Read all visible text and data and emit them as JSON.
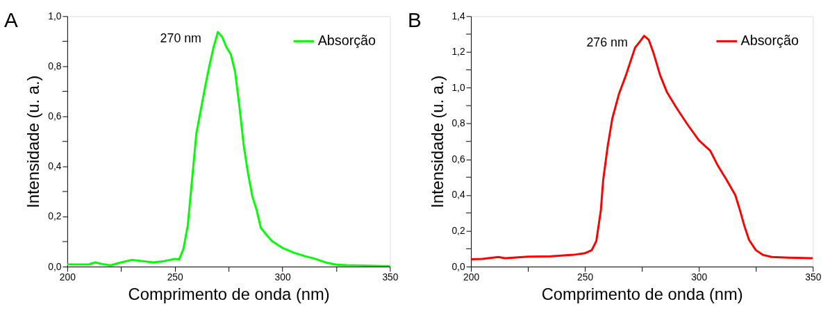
{
  "chart_data": [
    {
      "type": "line",
      "xlabel": "Comprimento de onda (nm)",
      "ylabel": "Intensidade (u. a.)",
      "legend": "top right",
      "grid": false,
      "annotations": [
        "A",
        {
          "text": "270 nm",
          "x": 270,
          "y": 0.937
        }
      ],
      "xlim": [
        200,
        350
      ],
      "xticks": [
        200,
        {
          "value": 225,
          "label": null
        },
        250,
        {
          "value": 275,
          "label": null
        },
        300,
        {
          "value": 325,
          "label": null
        },
        350
      ],
      "ylim": [
        0,
        1.0
      ],
      "yticks": [
        {
          "value": 0,
          "label": "0,0"
        },
        {
          "value": 0.1,
          "label": null
        },
        {
          "value": 0.2,
          "label": "0,2"
        },
        {
          "value": 0.3,
          "label": null
        },
        {
          "value": 0.4,
          "label": "0,4"
        },
        {
          "value": 0.5,
          "label": null
        },
        {
          "value": 0.6,
          "label": "0,6"
        },
        {
          "value": 0.7,
          "label": null
        },
        {
          "value": 0.8,
          "label": "0,8"
        },
        {
          "value": 0.9,
          "label": null
        },
        {
          "value": 1.0,
          "label": "1,0"
        }
      ],
      "series": [
        {
          "name": "Absorção",
          "color": "#00ff00",
          "x": [
            200,
            210,
            213,
            216,
            220,
            225,
            230,
            240,
            245,
            250,
            252,
            254,
            256,
            258,
            260,
            262,
            264,
            266,
            268,
            270,
            272,
            274,
            276,
            278,
            280,
            282,
            284,
            286,
            288,
            290,
            295,
            300,
            305,
            310,
            315,
            320,
            325,
            330,
            340,
            350
          ],
          "values": [
            0.009,
            0.009,
            0.017,
            0.011,
            0.005,
            0.017,
            0.027,
            0.017,
            0.022,
            0.031,
            0.029,
            0.071,
            0.163,
            0.347,
            0.531,
            0.623,
            0.715,
            0.8,
            0.876,
            0.937,
            0.917,
            0.876,
            0.848,
            0.779,
            0.641,
            0.485,
            0.374,
            0.282,
            0.227,
            0.154,
            0.103,
            0.075,
            0.057,
            0.043,
            0.032,
            0.017,
            0.008,
            0.006,
            0.004,
            0.002
          ]
        }
      ]
    },
    {
      "type": "line",
      "xlabel": "Comprimento de onda (nm)",
      "ylabel": "Intensidade (u. a.)",
      "legend": "top right",
      "grid": false,
      "annotations": [
        "B",
        {
          "text": "276 nm",
          "x": 276,
          "y": 1.29
        }
      ],
      "xlim": [
        200,
        350
      ],
      "xticks": [
        200,
        {
          "value": 225,
          "label": null
        },
        250,
        {
          "value": 275,
          "label": null
        },
        300,
        {
          "value": 325,
          "label": null
        },
        350
      ],
      "ylim": [
        0,
        1.4
      ],
      "yticks": [
        {
          "value": 0,
          "label": "0,0"
        },
        {
          "value": 0.1,
          "label": null
        },
        {
          "value": 0.2,
          "label": "0,2"
        },
        {
          "value": 0.3,
          "label": null
        },
        {
          "value": 0.4,
          "label": "0,4"
        },
        {
          "value": 0.5,
          "label": null
        },
        {
          "value": 0.6,
          "label": "0,6"
        },
        {
          "value": 0.7,
          "label": null
        },
        {
          "value": 0.8,
          "label": "0,8"
        },
        {
          "value": 0.9,
          "label": null
        },
        {
          "value": 1.0,
          "label": "1,0"
        },
        {
          "value": 1.1,
          "label": null
        },
        {
          "value": 1.2,
          "label": "1,2"
        },
        {
          "value": 1.3,
          "label": null
        },
        {
          "value": 1.4,
          "label": "1,4"
        }
      ],
      "series": [
        {
          "name": "Absorção",
          "color": "#ff0000",
          "x": [
            200,
            205,
            212,
            215,
            225,
            235,
            245,
            250,
            253,
            255,
            257,
            258,
            260,
            262,
            265,
            268,
            270,
            272,
            274,
            276,
            278,
            280,
            283,
            286,
            290,
            295,
            300,
            305,
            308,
            312,
            316,
            318,
            320,
            322,
            325,
            328,
            332,
            340,
            350
          ],
          "values": [
            0.041,
            0.043,
            0.054,
            0.047,
            0.056,
            0.058,
            0.066,
            0.075,
            0.092,
            0.143,
            0.316,
            0.482,
            0.674,
            0.827,
            0.968,
            1.07,
            1.147,
            1.224,
            1.256,
            1.29,
            1.268,
            1.198,
            1.07,
            0.975,
            0.891,
            0.795,
            0.706,
            0.648,
            0.572,
            0.488,
            0.399,
            0.316,
            0.226,
            0.15,
            0.092,
            0.066,
            0.054,
            0.05,
            0.047
          ]
        }
      ]
    }
  ]
}
